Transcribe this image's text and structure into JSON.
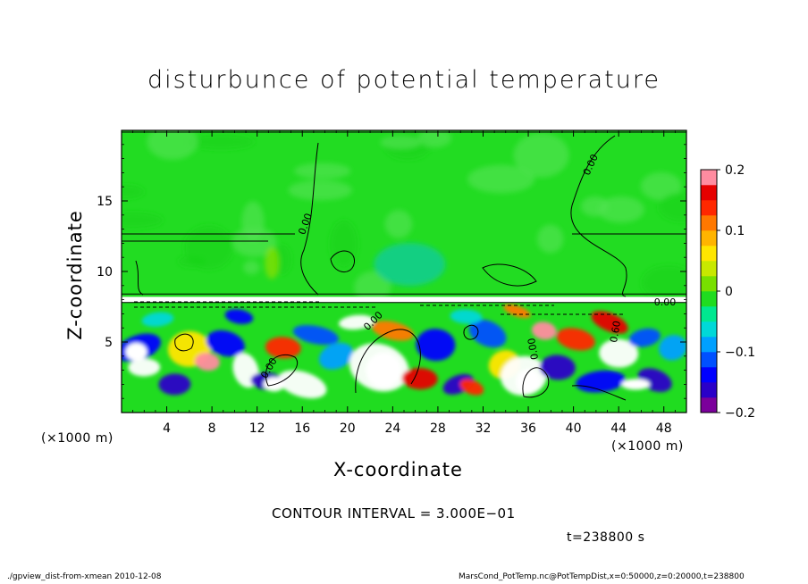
{
  "chart_data": {
    "type": "heatmap",
    "title": "disturbunce of potential temperature",
    "xlabel": "X-coordinate",
    "ylabel": "Z-coordinate",
    "x_unit_left": "(×1000 m)",
    "x_unit_right": "(×1000 m)",
    "xlim": [
      0,
      50
    ],
    "ylim": [
      0,
      20
    ],
    "x_ticks": [
      "4",
      "8",
      "12",
      "16",
      "20",
      "24",
      "28",
      "32",
      "36",
      "40",
      "44",
      "48"
    ],
    "x_tick_values": [
      4,
      8,
      12,
      16,
      20,
      24,
      28,
      32,
      36,
      40,
      44,
      48
    ],
    "y_ticks": [
      "5",
      "10",
      "15"
    ],
    "y_tick_values": [
      5,
      10,
      15
    ],
    "colorbar": {
      "range": [
        -0.2,
        0.2
      ],
      "tick_labels": [
        "0.2",
        "0.1",
        "0",
        "−0.1",
        "−0.2"
      ],
      "tick_values": [
        0.2,
        0.1,
        0,
        -0.1,
        -0.2
      ],
      "colors": [
        "#7b009b",
        "#2a00c8",
        "#0000ff",
        "#0050ff",
        "#00a0ff",
        "#00d8d8",
        "#00e890",
        "#20dc20",
        "#78e000",
        "#c8e800",
        "#ffe600",
        "#ffb400",
        "#ff7800",
        "#ff2800",
        "#e60000",
        "#ff8ca0"
      ]
    },
    "contour_interval_text": "CONTOUR INTERVAL = 3.000E−01",
    "contour_labels": [
      "0.00",
      "0.00",
      "0.00",
      "0.00",
      "0.60"
    ],
    "time_text": "t=238800 s",
    "upper_region": "near-zero disturbance (green) above z≈8 km",
    "lower_region": "mixed-layer eddies between z=0 and z≈8 km with values spanning −0.2 to 0.2"
  },
  "footer": {
    "left": "./gpview_dist-from-xmean   2010-12-08",
    "right": "MarsCond_PotTemp.nc@PotTempDist,x=0:50000,z=0:20000,t=238800"
  },
  "colors": {
    "field_zero": "#22dc22",
    "frame": "#000000",
    "background": "#ffffff"
  }
}
